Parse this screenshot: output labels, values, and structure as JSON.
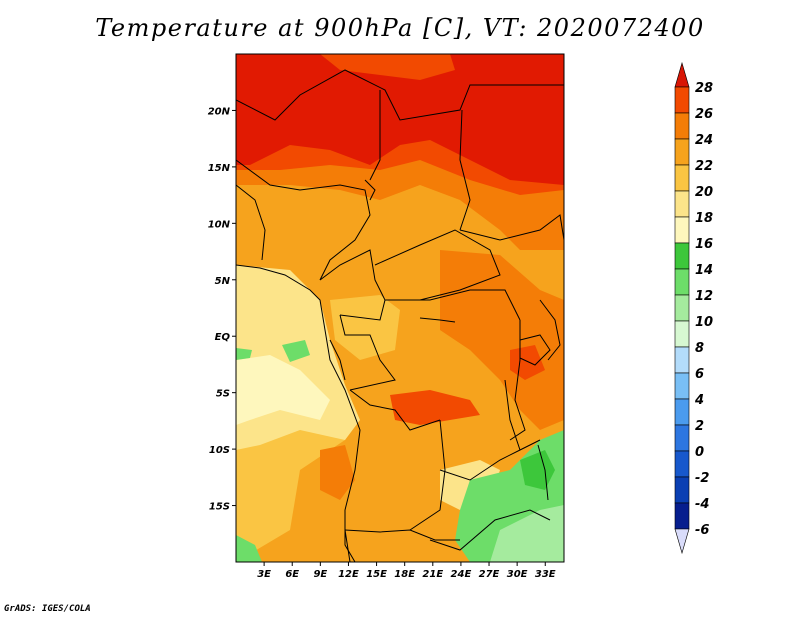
{
  "title": "Temperature at 900hPa [C], VT: 2020072400",
  "credit": "GrADS: IGES/COLA",
  "map": {
    "lon_range": [
      0,
      35
    ],
    "lat_range": [
      -20,
      25
    ],
    "lon_ticks": [
      {
        "value": 3,
        "label": "3E"
      },
      {
        "value": 6,
        "label": "6E"
      },
      {
        "value": 9,
        "label": "9E"
      },
      {
        "value": 12,
        "label": "12E"
      },
      {
        "value": 15,
        "label": "15E"
      },
      {
        "value": 18,
        "label": "18E"
      },
      {
        "value": 21,
        "label": "21E"
      },
      {
        "value": 24,
        "label": "24E"
      },
      {
        "value": 27,
        "label": "27E"
      },
      {
        "value": 30,
        "label": "30E"
      },
      {
        "value": 33,
        "label": "33E"
      }
    ],
    "lat_ticks": [
      {
        "value": 20,
        "label": "20N"
      },
      {
        "value": 15,
        "label": "15N"
      },
      {
        "value": 10,
        "label": "10N"
      },
      {
        "value": 5,
        "label": "5N"
      },
      {
        "value": 0,
        "label": "EQ"
      },
      {
        "value": -5,
        "label": "5S"
      },
      {
        "value": -10,
        "label": "10S"
      },
      {
        "value": -15,
        "label": "15S"
      }
    ]
  },
  "colorbar": {
    "levels": [
      28,
      26,
      24,
      22,
      20,
      18,
      16,
      14,
      12,
      10,
      8,
      6,
      4,
      2,
      0,
      -2,
      -4,
      -6
    ],
    "labels": [
      "28",
      "26",
      "24",
      "22",
      "20",
      "18",
      "16",
      "14",
      "12",
      "10",
      "8",
      "6",
      "4",
      "2",
      "0",
      "-2",
      "-4",
      "-6"
    ],
    "colors": [
      "#e11a02",
      "#f24a01",
      "#f47d07",
      "#f6a31d",
      "#fac543",
      "#fce48a",
      "#fef7bd",
      "#3dc73b",
      "#6ddd69",
      "#a5eb9e",
      "#d7f8d2",
      "#b3dcfb",
      "#79bff5",
      "#4b9bee",
      "#2d76e0",
      "#1758cc",
      "#0a3fb3",
      "#061e8e"
    ],
    "top_color": "#d81605",
    "bottom_color": "#d9dcfa"
  },
  "colors": {
    "hot": "#e11a02",
    "very_warm": "#f24a01",
    "warm": "#f47d07",
    "mild_warm": "#f6a31d",
    "mild": "#fac543",
    "cool": "#fce48a",
    "cooler": "#fef7bd",
    "green_dark": "#3dc73b",
    "green": "#6ddd69",
    "green_light": "#a5eb9e"
  }
}
